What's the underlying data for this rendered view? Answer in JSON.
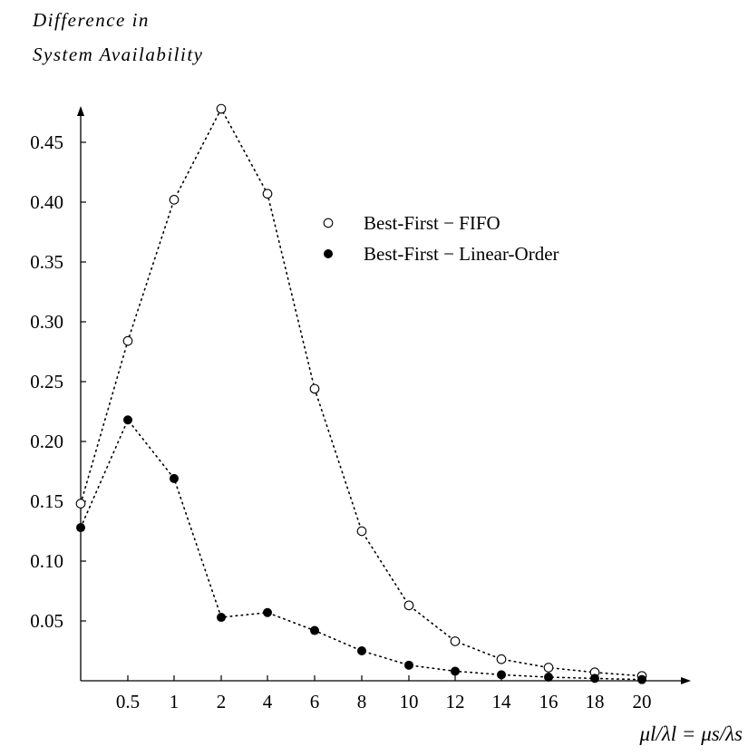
{
  "chart_data": {
    "type": "scatter",
    "ylabel_lines": [
      "Difference in",
      "System Availability"
    ],
    "xlabel": "μl/λl = μs/λs",
    "categories": [
      "",
      "0.5",
      "1",
      "2",
      "4",
      "6",
      "8",
      "10",
      "12",
      "14",
      "16",
      "18",
      "20"
    ],
    "yticks": [
      "0.05",
      "0.10",
      "0.15",
      "0.20",
      "0.25",
      "0.30",
      "0.35",
      "0.40",
      "0.45"
    ],
    "ylim": [
      0,
      0.48
    ],
    "legend_position": "upper-right",
    "grid": false,
    "series": [
      {
        "name": "Best-First − FIFO",
        "marker": "open-circle",
        "line_style": "dotted",
        "values": [
          0.148,
          0.284,
          0.402,
          0.478,
          0.407,
          0.244,
          0.125,
          0.063,
          0.033,
          0.018,
          0.011,
          0.007,
          0.004
        ]
      },
      {
        "name": "Best-First − Linear-Order",
        "marker": "filled-circle",
        "line_style": "dotted",
        "values": [
          0.128,
          0.218,
          0.169,
          0.053,
          0.057,
          0.042,
          0.025,
          0.013,
          0.008,
          0.005,
          0.003,
          0.002,
          0.001
        ]
      }
    ]
  }
}
